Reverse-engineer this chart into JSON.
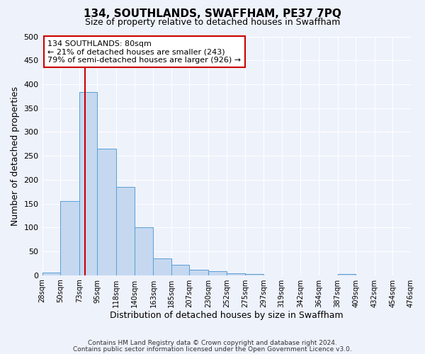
{
  "title": "134, SOUTHLANDS, SWAFFHAM, PE37 7PQ",
  "subtitle": "Size of property relative to detached houses in Swaffham",
  "xlabel": "Distribution of detached houses by size in Swaffham",
  "ylabel": "Number of detached properties",
  "bar_color": "#c5d8f0",
  "bar_edge_color": "#5a9fd4",
  "background_color": "#eef2fb",
  "grid_color": "#ffffff",
  "vline_x": 80,
  "vline_color": "#cc0000",
  "annotation_title": "134 SOUTHLANDS: 80sqm",
  "annotation_line1": "← 21% of detached houses are smaller (243)",
  "annotation_line2": "79% of semi-detached houses are larger (926) →",
  "annotation_box_color": "#ffffff",
  "annotation_box_edge": "#cc0000",
  "bin_edges": [
    28,
    50,
    73,
    95,
    118,
    140,
    163,
    185,
    207,
    230,
    252,
    275,
    297,
    319,
    342,
    364,
    387,
    409,
    432,
    454,
    476
  ],
  "bar_heights": [
    5,
    155,
    383,
    265,
    185,
    100,
    35,
    22,
    12,
    8,
    4,
    2,
    0,
    0,
    0,
    0,
    3,
    0,
    0,
    0
  ],
  "ylim": [
    0,
    500
  ],
  "yticks": [
    0,
    50,
    100,
    150,
    200,
    250,
    300,
    350,
    400,
    450,
    500
  ],
  "footer_line1": "Contains HM Land Registry data © Crown copyright and database right 2024.",
  "footer_line2": "Contains public sector information licensed under the Open Government Licence v3.0."
}
